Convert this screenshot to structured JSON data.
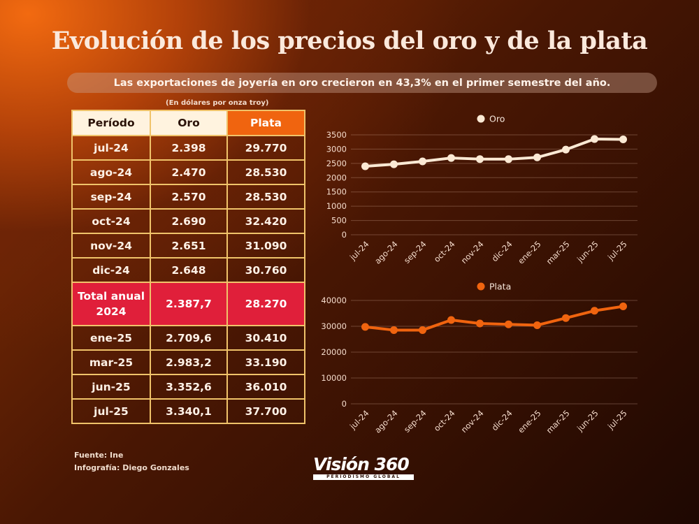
{
  "title": "Evolución de los precios del oro y de la plata",
  "subtitle": "Las exportaciones de joyería en oro crecieron en 43,3% en el primer semestre del año.",
  "units_note": "(En dólares por onza troy)",
  "table": {
    "headers": [
      "Período",
      "Oro",
      "Plata"
    ],
    "rows": [
      [
        "jul-24",
        "2.398",
        "29.770"
      ],
      [
        "ago-24",
        "2.470",
        "28.530"
      ],
      [
        "sep-24",
        "2.570",
        "28.530"
      ],
      [
        "oct-24",
        "2.690",
        "32.420"
      ],
      [
        "nov-24",
        "2.651",
        "31.090"
      ],
      [
        "dic-24",
        "2.648",
        "30.760"
      ],
      [
        "Total anual 2024",
        "2.387,7",
        "28.270"
      ],
      [
        "ene-25",
        "2.709,6",
        "30.410"
      ],
      [
        "mar-25",
        "2.983,2",
        "33.190"
      ],
      [
        "jun-25",
        "3.352,6",
        "36.010"
      ],
      [
        "jul-25",
        "3.340,1",
        "37.700"
      ]
    ],
    "highlight_row_label": "Total anual 2024"
  },
  "source_line": "Fuente:   Ine",
  "credit_line": "Infografía: Diego Gonzales",
  "logo": {
    "name": "Visión 360",
    "tagline": "PERIODISMO GLOBAL"
  },
  "colors": {
    "oro": "#fbe9d4",
    "plata": "#f0640f",
    "highlight": "#e01f3a",
    "border": "#f0c36a"
  },
  "chart_data": [
    {
      "type": "line",
      "categories": [
        "jul-24",
        "ago-24",
        "sep-24",
        "oct-24",
        "nov-24",
        "dic-24",
        "ene-25",
        "mar-25",
        "jun-25",
        "jul-25"
      ],
      "series": [
        {
          "name": "Oro",
          "values": [
            2398,
            2470,
            2570,
            2690,
            2651,
            2648,
            2709.6,
            2983.2,
            3352.6,
            3340.1
          ]
        }
      ],
      "ylim": [
        0,
        3500
      ],
      "yticks": [
        0,
        500,
        1000,
        1500,
        2000,
        2500,
        3000,
        3500
      ],
      "grid": true,
      "legend": "top-center"
    },
    {
      "type": "line",
      "categories": [
        "jul-24",
        "ago-24",
        "sep-24",
        "oct-24",
        "nov-24",
        "dic-24",
        "ene-25",
        "mar-25",
        "jun-25",
        "jul-25"
      ],
      "series": [
        {
          "name": "Plata",
          "values": [
            29770,
            28530,
            28530,
            32420,
            31090,
            30760,
            30410,
            33190,
            36010,
            37700
          ]
        }
      ],
      "ylim": [
        0,
        40000
      ],
      "yticks": [
        0,
        10000,
        20000,
        30000,
        40000
      ],
      "grid": true,
      "legend": "top-center"
    }
  ]
}
